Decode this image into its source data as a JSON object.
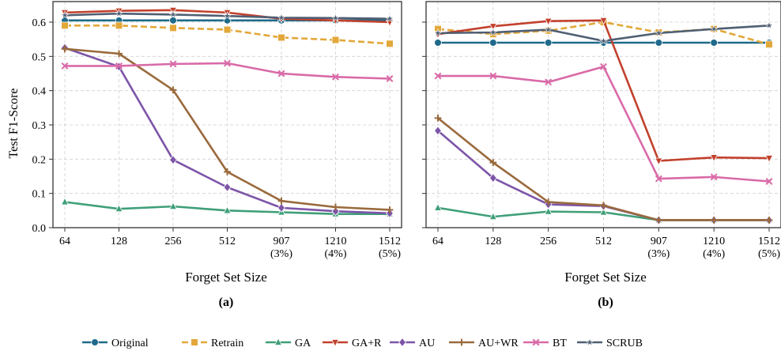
{
  "figure": {
    "ylabel": "Test F1-Score",
    "xlabel": "Forget Set Size",
    "panel_labels": [
      "(a)",
      "(b)"
    ]
  },
  "chart_data": [
    {
      "type": "line",
      "panel": "(a)",
      "xlabel": "Forget Set Size",
      "ylabel": "Test F1-Score",
      "ylim": [
        0,
        0.66
      ],
      "yticks": [
        0.0,
        0.1,
        0.2,
        0.3,
        0.4,
        0.5,
        0.6
      ],
      "categories": [
        "64",
        "128",
        "256",
        "512",
        "907\n(3%)",
        "1210\n(4%)",
        "1512\n(5%)"
      ],
      "grid": true,
      "series": [
        {
          "name": "Original",
          "values": [
            0.605,
            0.605,
            0.605,
            0.605,
            0.605,
            0.605,
            0.605
          ]
        },
        {
          "name": "Retrain",
          "values": [
            0.59,
            0.59,
            0.583,
            0.578,
            0.555,
            0.548,
            0.537
          ]
        },
        {
          "name": "GA",
          "values": [
            0.075,
            0.055,
            0.062,
            0.05,
            0.045,
            0.04,
            0.04
          ]
        },
        {
          "name": "GA+R",
          "values": [
            0.628,
            0.633,
            0.635,
            0.628,
            0.61,
            0.605,
            0.6
          ]
        },
        {
          "name": "AU",
          "values": [
            0.525,
            0.47,
            0.198,
            0.118,
            0.058,
            0.048,
            0.042
          ]
        },
        {
          "name": "AU+WR",
          "values": [
            0.522,
            0.508,
            0.402,
            0.163,
            0.078,
            0.06,
            0.052
          ]
        },
        {
          "name": "BT",
          "values": [
            0.472,
            0.472,
            0.478,
            0.48,
            0.45,
            0.44,
            0.435
          ]
        },
        {
          "name": "SCRUB",
          "values": [
            0.62,
            0.625,
            0.622,
            0.618,
            0.613,
            0.612,
            0.61
          ]
        }
      ]
    },
    {
      "type": "line",
      "panel": "(b)",
      "xlabel": "Forget Set Size",
      "ylim": [
        0,
        0.66
      ],
      "categories": [
        "64",
        "128",
        "256",
        "512",
        "907\n(3%)",
        "1210\n(4%)",
        "1512\n(5%)"
      ],
      "grid": true,
      "series": [
        {
          "name": "Original",
          "values": [
            0.54,
            0.54,
            0.54,
            0.54,
            0.54,
            0.54,
            0.54
          ]
        },
        {
          "name": "Retrain",
          "values": [
            0.58,
            0.565,
            0.575,
            0.6,
            0.57,
            0.58,
            0.535
          ]
        },
        {
          "name": "GA",
          "values": [
            0.058,
            0.032,
            0.047,
            0.045,
            0.022,
            0.022,
            0.022
          ]
        },
        {
          "name": "GA+R",
          "values": [
            0.565,
            0.588,
            0.603,
            0.605,
            0.195,
            0.205,
            0.203
          ]
        },
        {
          "name": "AU",
          "values": [
            0.283,
            0.145,
            0.068,
            0.063,
            0.022,
            0.022,
            0.022
          ]
        },
        {
          "name": "AU+WR",
          "values": [
            0.32,
            0.19,
            0.075,
            0.065,
            0.022,
            0.022,
            0.022
          ]
        },
        {
          "name": "BT",
          "values": [
            0.443,
            0.443,
            0.425,
            0.47,
            0.143,
            0.148,
            0.135
          ]
        },
        {
          "name": "SCRUB",
          "values": [
            0.568,
            0.57,
            0.578,
            0.545,
            0.568,
            0.58,
            0.59
          ]
        }
      ]
    }
  ],
  "legend": {
    "placement": "bottom",
    "items": [
      {
        "name": "Original",
        "color": "#1f6a8a",
        "marker": "circle",
        "dash": "solid"
      },
      {
        "name": "Retrain",
        "color": "#e2a83a",
        "marker": "square",
        "dash": "dashed"
      },
      {
        "name": "GA",
        "color": "#3f9f79",
        "marker": "triangle-up",
        "dash": "solid"
      },
      {
        "name": "GA+R",
        "color": "#c2412d",
        "marker": "triangle-down",
        "dash": "solid"
      },
      {
        "name": "AU",
        "color": "#7d55a8",
        "marker": "diamond",
        "dash": "solid"
      },
      {
        "name": "AU+WR",
        "color": "#9a6a3c",
        "marker": "plus",
        "dash": "solid"
      },
      {
        "name": "BT",
        "color": "#d96aa8",
        "marker": "x",
        "dash": "solid"
      },
      {
        "name": "SCRUB",
        "color": "#4f5f73",
        "marker": "star",
        "dash": "solid"
      }
    ]
  }
}
